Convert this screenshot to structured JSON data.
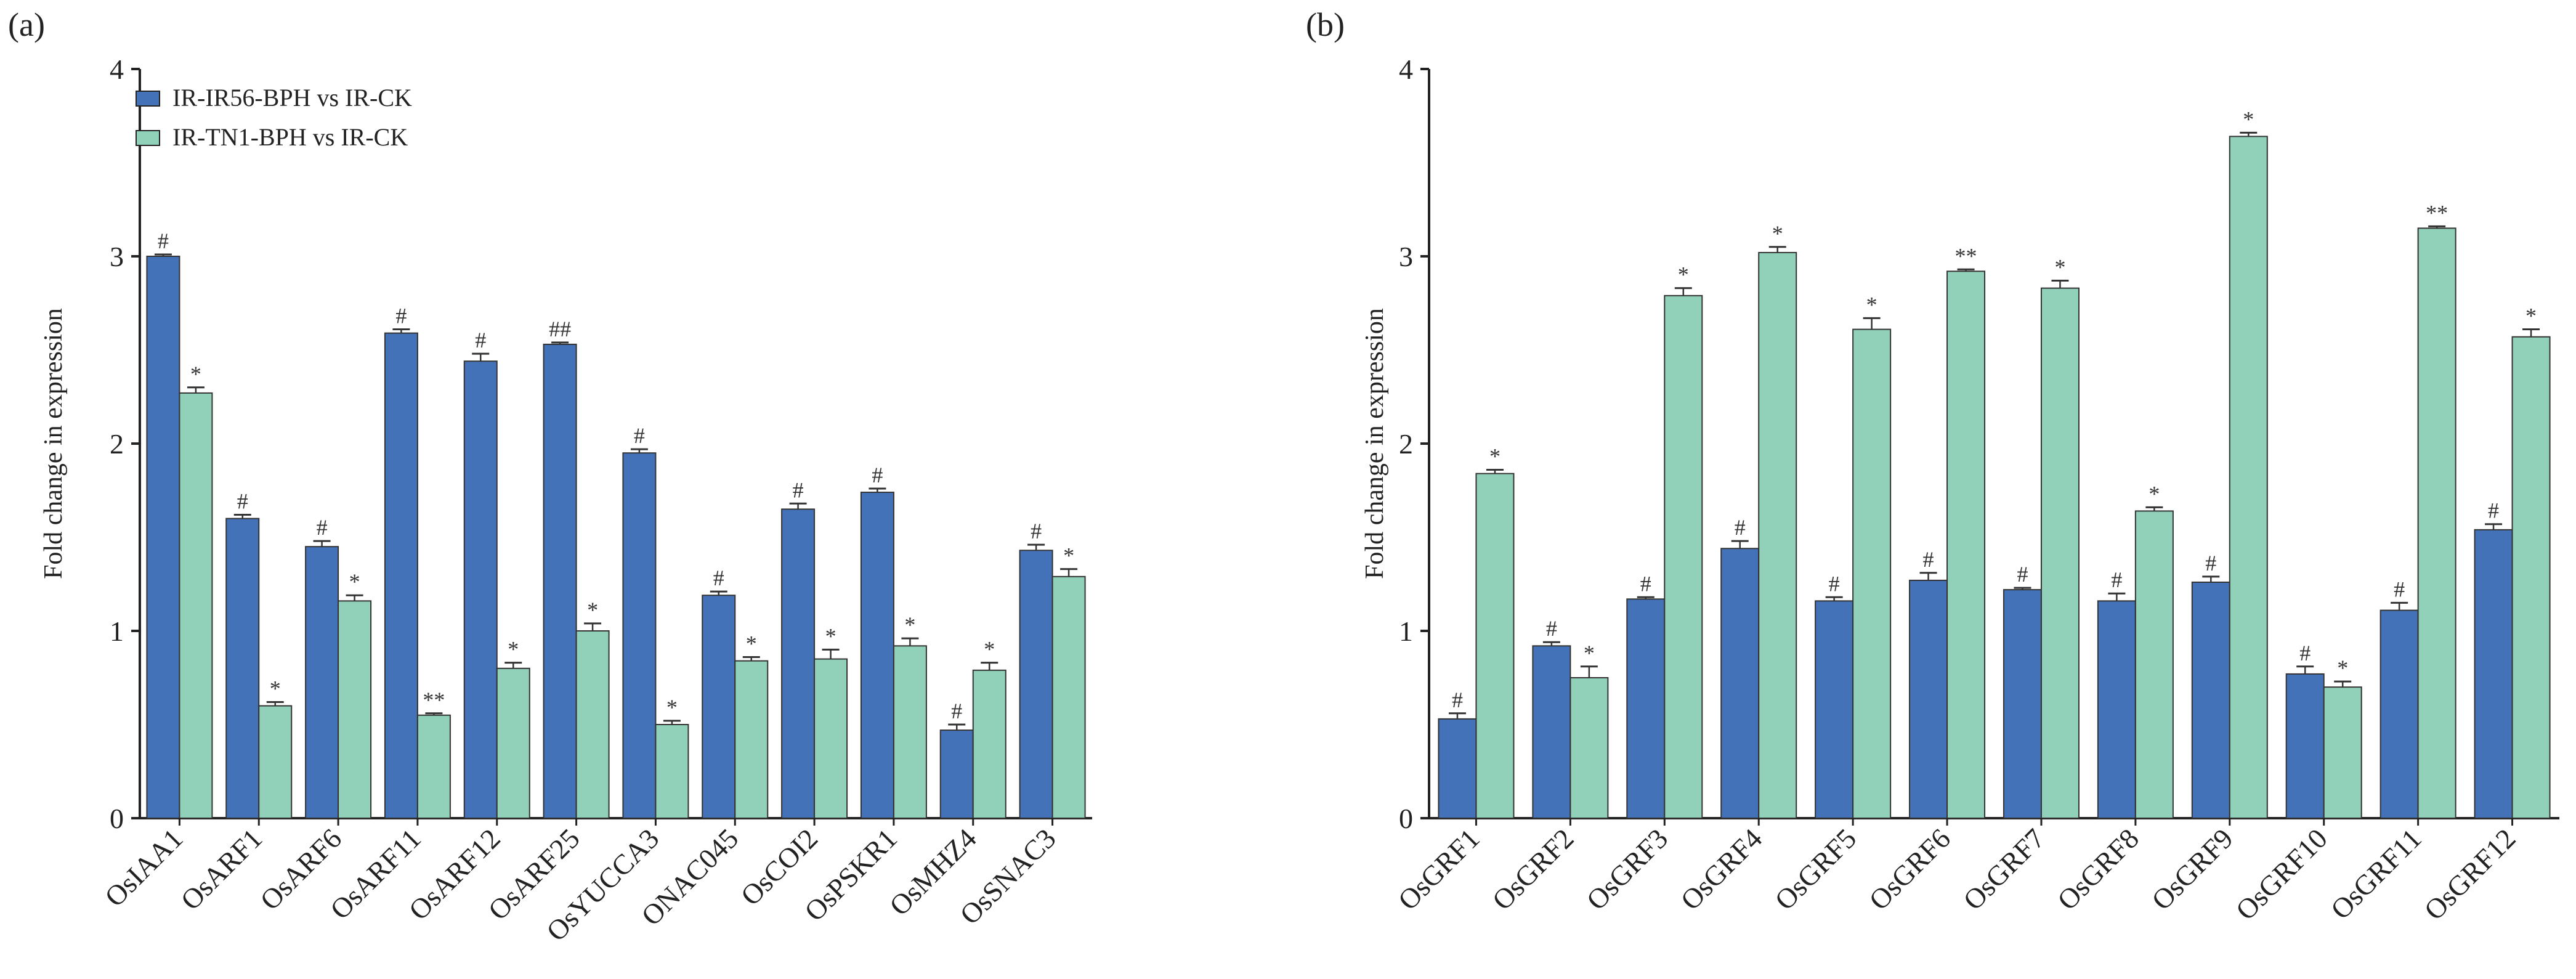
{
  "colors": {
    "series1": "#4472B8",
    "series2": "#92D1B9"
  },
  "legend": {
    "placement": "top-left",
    "entries": [
      "IR-IR56-BPH vs IR-CK",
      "IR-TN1-BPH vs IR-CK"
    ]
  },
  "chart_data": [
    {
      "type": "bar",
      "panel_label": "(a)",
      "ylabel": "Fold change in expression",
      "ylim": [
        0,
        4
      ],
      "yticks": [
        "0",
        "1",
        "2",
        "3",
        "4"
      ],
      "grid": false,
      "categories": [
        "OsIAA1",
        "OsARF1",
        "OsARF6",
        "OsARF11",
        "OsARF12",
        "OsARF25",
        "OsYUCCA3",
        "ONAC045",
        "OsCOI2",
        "OsPSKR1",
        "OsMHZ4",
        "OsSNAC3"
      ],
      "series": [
        {
          "name": "IR-IR56-BPH vs IR-CK",
          "values": [
            3.0,
            1.6,
            1.45,
            2.59,
            2.44,
            2.53,
            1.95,
            1.19,
            1.65,
            1.74,
            0.47,
            1.43
          ],
          "errors": [
            0.01,
            0.02,
            0.03,
            0.02,
            0.04,
            0.01,
            0.02,
            0.02,
            0.03,
            0.02,
            0.03,
            0.03
          ],
          "annotations": [
            "#",
            "#",
            "#",
            "#",
            "#",
            "##",
            "#",
            "#",
            "#",
            "#",
            "#",
            "#"
          ]
        },
        {
          "name": "IR-TN1-BPH vs IR-CK",
          "values": [
            2.27,
            0.6,
            1.16,
            0.55,
            0.8,
            1.0,
            0.5,
            0.84,
            0.85,
            0.92,
            0.79,
            1.29
          ],
          "errors": [
            0.03,
            0.02,
            0.03,
            0.01,
            0.03,
            0.04,
            0.02,
            0.02,
            0.05,
            0.04,
            0.04,
            0.04
          ],
          "annotations": [
            "*",
            "*",
            "*",
            "**",
            "*",
            "*",
            "*",
            "*",
            "*",
            "*",
            "*",
            "*"
          ]
        }
      ]
    },
    {
      "type": "bar",
      "panel_label": "(b)",
      "ylabel": "Fold change in expression",
      "ylim": [
        0,
        4
      ],
      "yticks": [
        "0",
        "1",
        "2",
        "3",
        "4"
      ],
      "grid": false,
      "categories": [
        "OsGRF1",
        "OsGRF2",
        "OsGRF3",
        "OsGRF4",
        "OsGRF5",
        "OsGRF6",
        "OsGRF7",
        "OsGRF8",
        "OsGRF9",
        "OsGRF10",
        "OsGRF11",
        "OsGRF12"
      ],
      "series": [
        {
          "name": "IR-IR56-BPH vs IR-CK",
          "values": [
            0.53,
            0.92,
            1.17,
            1.44,
            1.16,
            1.27,
            1.22,
            1.16,
            1.26,
            0.77,
            1.11,
            1.54
          ],
          "errors": [
            0.03,
            0.02,
            0.01,
            0.04,
            0.02,
            0.04,
            0.01,
            0.04,
            0.03,
            0.04,
            0.04,
            0.03
          ],
          "annotations": [
            "#",
            "#",
            "#",
            "#",
            "#",
            "#",
            "#",
            "#",
            "#",
            "#",
            "#",
            "#"
          ]
        },
        {
          "name": "IR-TN1-BPH vs IR-CK",
          "values": [
            1.84,
            0.75,
            2.79,
            3.02,
            2.61,
            2.92,
            2.83,
            1.64,
            3.64,
            0.7,
            3.15,
            2.57
          ],
          "errors": [
            0.02,
            0.06,
            0.04,
            0.03,
            0.06,
            0.01,
            0.04,
            0.02,
            0.02,
            0.03,
            0.01,
            0.04
          ],
          "annotations": [
            "*",
            "*",
            "*",
            "*",
            "*",
            "**",
            "*",
            "*",
            "*",
            "*",
            "**",
            "*"
          ]
        }
      ]
    }
  ]
}
